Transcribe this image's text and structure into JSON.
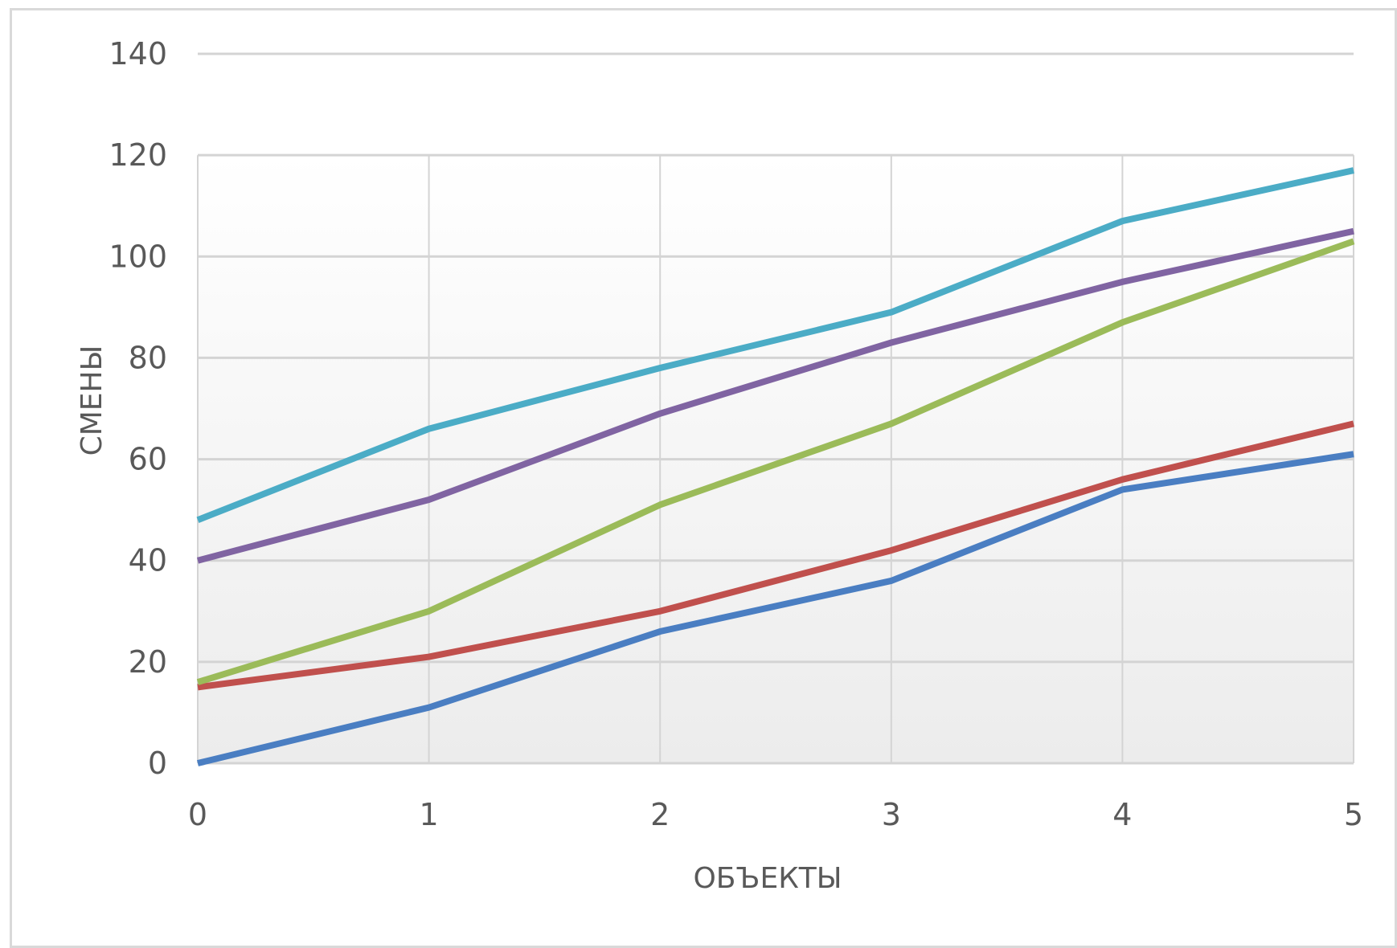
{
  "chart_data": {
    "type": "line",
    "xlabel": "ОБЪЕКТЫ",
    "ylabel": "СМЕНЫ",
    "x": [
      0,
      1,
      2,
      3,
      4,
      5
    ],
    "xlim": [
      0,
      5
    ],
    "ylim": [
      0,
      140
    ],
    "yticks": [
      0,
      20,
      40,
      60,
      80,
      100,
      120,
      140
    ],
    "xticks": [
      0,
      1,
      2,
      3,
      4,
      5
    ],
    "grid": true,
    "legend": "none",
    "series": [
      {
        "color": "#4A7EC2",
        "values": [
          0,
          11,
          26,
          36,
          54,
          61
        ]
      },
      {
        "color": "#C0504D",
        "values": [
          15,
          21,
          30,
          42,
          56,
          67
        ]
      },
      {
        "color": "#9BBB59",
        "values": [
          16,
          30,
          51,
          67,
          87,
          103
        ]
      },
      {
        "color": "#8064A2",
        "values": [
          40,
          52,
          69,
          83,
          95,
          105
        ]
      },
      {
        "color": "#4BACC6",
        "values": [
          48,
          66,
          78,
          89,
          107,
          117
        ]
      }
    ]
  }
}
